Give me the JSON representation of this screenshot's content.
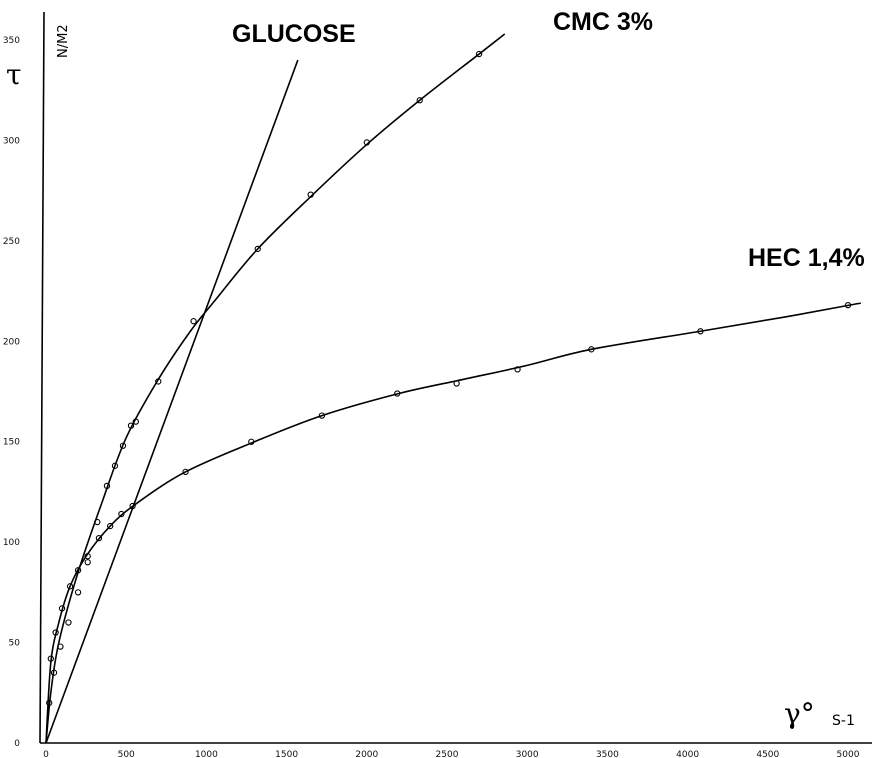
{
  "chart_data": {
    "type": "line",
    "y_axis_symbol": "τ",
    "y_unit": "N/M2",
    "x_axis_symbol": "γ°",
    "x_unit": "S-1",
    "xlim": [
      0,
      5100
    ],
    "ylim": [
      0,
      360
    ],
    "x_ticks": [
      0,
      500,
      1000,
      1500,
      2000,
      2500,
      3000,
      3500,
      4000,
      4500,
      5000
    ],
    "y_ticks": [
      0,
      50,
      100,
      150,
      200,
      250,
      300,
      350
    ],
    "grid": false,
    "series": [
      {
        "name": "GLUCOSE",
        "curve": [
          [
            0,
            0
          ],
          [
            1570,
            340
          ]
        ],
        "points": []
      },
      {
        "name": "CMC 3%",
        "curve": [
          [
            0,
            0
          ],
          [
            30,
            25
          ],
          [
            80,
            50
          ],
          [
            200,
            85
          ],
          [
            350,
            120
          ],
          [
            500,
            152
          ],
          [
            700,
            181
          ],
          [
            900,
            205
          ],
          [
            1050,
            220
          ],
          [
            1320,
            246
          ],
          [
            1650,
            272
          ],
          [
            2000,
            298
          ],
          [
            2330,
            320
          ],
          [
            2700,
            343
          ],
          [
            2860,
            353
          ]
        ],
        "points": [
          [
            20,
            20
          ],
          [
            50,
            35
          ],
          [
            90,
            48
          ],
          [
            140,
            60
          ],
          [
            200,
            75
          ],
          [
            260,
            90
          ],
          [
            320,
            110
          ],
          [
            380,
            128
          ],
          [
            430,
            138
          ],
          [
            480,
            148
          ],
          [
            530,
            158
          ],
          [
            560,
            160
          ],
          [
            700,
            180
          ],
          [
            920,
            210
          ],
          [
            1320,
            246
          ],
          [
            1650,
            273
          ],
          [
            2000,
            299
          ],
          [
            2330,
            320
          ],
          [
            2700,
            343
          ]
        ]
      },
      {
        "name": "HEC 1,4%",
        "curve": [
          [
            0,
            0
          ],
          [
            30,
            40
          ],
          [
            80,
            60
          ],
          [
            150,
            78
          ],
          [
            250,
            93
          ],
          [
            400,
            108
          ],
          [
            560,
            119
          ],
          [
            870,
            135
          ],
          [
            1300,
            150
          ],
          [
            1720,
            163
          ],
          [
            2200,
            174
          ],
          [
            2600,
            181
          ],
          [
            3000,
            188
          ],
          [
            3400,
            196
          ],
          [
            4080,
            205
          ],
          [
            4600,
            212
          ],
          [
            5010,
            218
          ],
          [
            5080,
            219
          ]
        ],
        "points": [
          [
            30,
            42
          ],
          [
            60,
            55
          ],
          [
            100,
            67
          ],
          [
            150,
            78
          ],
          [
            200,
            86
          ],
          [
            260,
            93
          ],
          [
            330,
            102
          ],
          [
            400,
            108
          ],
          [
            470,
            114
          ],
          [
            540,
            118
          ],
          [
            870,
            135
          ],
          [
            1280,
            150
          ],
          [
            1720,
            163
          ],
          [
            2190,
            174
          ],
          [
            2560,
            179
          ],
          [
            2940,
            186
          ],
          [
            3400,
            196
          ],
          [
            4080,
            205
          ],
          [
            5000,
            218
          ]
        ]
      }
    ]
  }
}
